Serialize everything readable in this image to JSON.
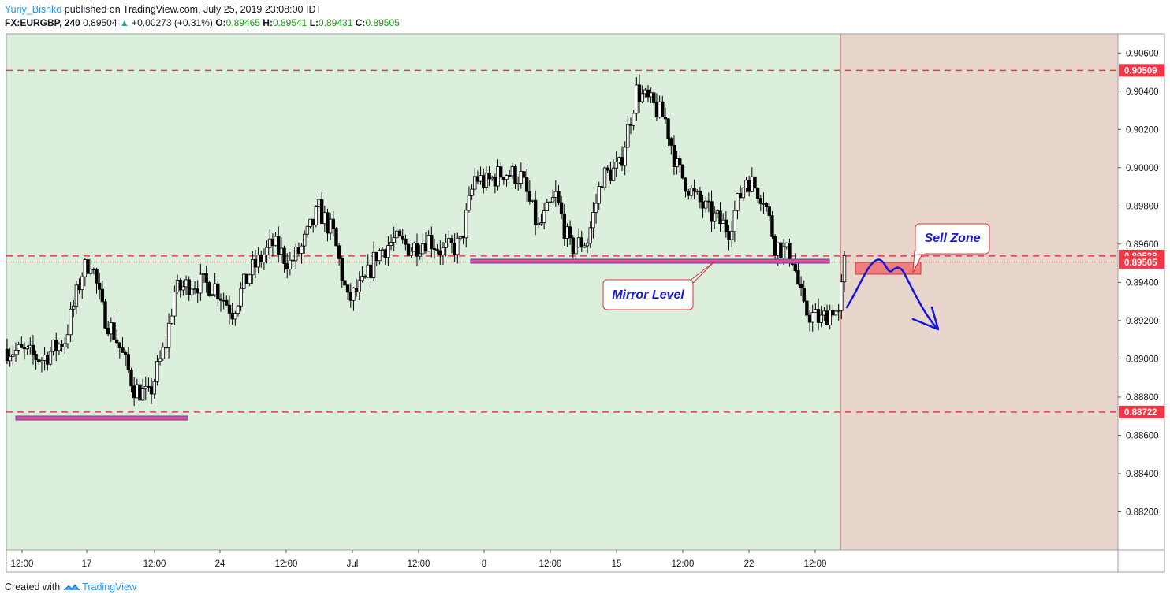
{
  "header": {
    "author": "Yuriy_Bishko",
    "published_text": "published on TradingView.com, July 25, 2019 23:08:00 IDT",
    "symbol": "FX:EURGBP, 240",
    "last_price": "0.89504",
    "arrow": "▲",
    "change": "+0.00273 (+0.31%)",
    "open_label": "O:",
    "open": "0.89465",
    "high_label": "H:",
    "high": "0.89541",
    "low_label": "L:",
    "low": "0.89431",
    "close_label": "C:",
    "close": "0.89505"
  },
  "footer": {
    "created_with": "Created with",
    "brand": "TradingView"
  },
  "colors": {
    "green_zone": "#dcefdd",
    "red_zone": "#e8d6cd",
    "level_line": "#f23645",
    "candle": "#000000",
    "arrow_drawing": "#1515e0",
    "callout_text": "#1a1ad8",
    "zone_box": "#f07c7c",
    "support_bar": "#e0509a"
  },
  "chart_data": {
    "type": "candlestick",
    "symbol": "EURGBP",
    "timeframe": "240",
    "ylim": [
      0.88,
      0.907
    ],
    "y_ticks": [
      "0.90600",
      "0.90400",
      "0.90200",
      "0.90000",
      "0.89800",
      "0.89600",
      "0.89400",
      "0.89200",
      "0.89000",
      "0.88800",
      "0.88600",
      "0.88400",
      "0.88200"
    ],
    "x_ticks": [
      "12:00",
      "17",
      "12:00",
      "24",
      "12:00",
      "Jul",
      "12:00",
      "8",
      "12:00",
      "15",
      "12:00",
      "22",
      "12:00"
    ],
    "price_levels": [
      {
        "value": 0.90509,
        "label": "0.90509",
        "style": "dashed"
      },
      {
        "value": 0.89538,
        "label": "0.89538",
        "style": "dashed"
      },
      {
        "value": 0.89505,
        "label": "0.89505",
        "style": "dotted"
      },
      {
        "value": 0.88722,
        "label": "0.88722",
        "style": "dashed"
      }
    ],
    "annotations": [
      {
        "text": "Mirror Level"
      },
      {
        "text": "Sell Zone"
      }
    ],
    "keypoints": [
      [
        0,
        0.8905
      ],
      [
        6,
        0.8903
      ],
      [
        12,
        0.89
      ],
      [
        20,
        0.891
      ],
      [
        26,
        0.8945
      ],
      [
        29,
        0.8952
      ],
      [
        33,
        0.8925
      ],
      [
        38,
        0.891
      ],
      [
        44,
        0.8885
      ],
      [
        49,
        0.888
      ],
      [
        55,
        0.8908
      ],
      [
        58,
        0.8935
      ],
      [
        64,
        0.894
      ],
      [
        72,
        0.8938
      ],
      [
        78,
        0.8925
      ],
      [
        84,
        0.8945
      ],
      [
        92,
        0.896
      ],
      [
        98,
        0.895
      ],
      [
        102,
        0.8958
      ],
      [
        108,
        0.8978
      ],
      [
        113,
        0.8965
      ],
      [
        118,
        0.893
      ],
      [
        124,
        0.894
      ],
      [
        128,
        0.8955
      ],
      [
        134,
        0.8962
      ],
      [
        140,
        0.8958
      ],
      [
        146,
        0.8963
      ],
      [
        151,
        0.8956
      ],
      [
        157,
        0.896
      ],
      [
        162,
        0.8995
      ],
      [
        166,
        0.8992
      ],
      [
        172,
        0.8998
      ],
      [
        178,
        0.8995
      ],
      [
        184,
        0.8968
      ],
      [
        190,
        0.8985
      ],
      [
        195,
        0.8958
      ],
      [
        201,
        0.8962
      ],
      [
        206,
        0.8995
      ],
      [
        212,
        0.9
      ],
      [
        218,
        0.904
      ],
      [
        224,
        0.9032
      ],
      [
        228,
        0.9025
      ],
      [
        232,
        0.9
      ],
      [
        238,
        0.8985
      ],
      [
        244,
        0.8975
      ],
      [
        250,
        0.8968
      ],
      [
        256,
        0.8995
      ],
      [
        262,
        0.8985
      ],
      [
        266,
        0.896
      ],
      [
        272,
        0.8953
      ],
      [
        276,
        0.8925
      ],
      [
        282,
        0.892
      ],
      [
        286,
        0.8927
      ],
      [
        288,
        0.8922
      ],
      [
        290,
        0.895
      ]
    ]
  }
}
